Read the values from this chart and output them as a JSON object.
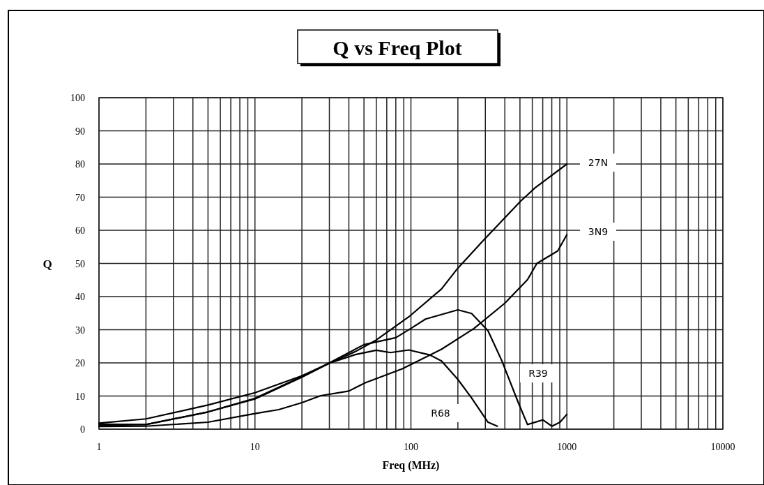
{
  "chart_data": {
    "type": "line",
    "title": "Q vs Freq Plot",
    "xlabel": "Freq (MHz)",
    "ylabel": "Q",
    "log": "x",
    "grid": true,
    "marker": "none",
    "line_style": "solid",
    "xlim": [
      1,
      10000
    ],
    "ylim": [
      0,
      100
    ],
    "xticks": [
      1,
      {
        "value": 2,
        "label": null
      },
      {
        "value": 3,
        "label": null
      },
      {
        "value": 4,
        "label": null
      },
      {
        "value": 5,
        "label": null
      },
      {
        "value": 6,
        "label": null
      },
      {
        "value": 7,
        "label": null
      },
      {
        "value": 8,
        "label": null
      },
      {
        "value": 9,
        "label": null
      },
      10,
      {
        "value": 20,
        "label": null
      },
      {
        "value": 30,
        "label": null
      },
      {
        "value": 40,
        "label": null
      },
      {
        "value": 50,
        "label": null
      },
      {
        "value": 60,
        "label": null
      },
      {
        "value": 70,
        "label": null
      },
      {
        "value": 80,
        "label": null
      },
      {
        "value": 90,
        "label": null
      },
      100,
      {
        "value": 200,
        "label": null
      },
      {
        "value": 300,
        "label": null
      },
      {
        "value": 400,
        "label": null
      },
      {
        "value": 500,
        "label": null
      },
      {
        "value": 600,
        "label": null
      },
      {
        "value": 700,
        "label": null
      },
      {
        "value": 800,
        "label": null
      },
      {
        "value": 900,
        "label": null
      },
      1000,
      {
        "value": 2000,
        "label": null
      },
      {
        "value": 3000,
        "label": null
      },
      {
        "value": 4000,
        "label": null
      },
      {
        "value": 5000,
        "label": null
      },
      {
        "value": 6000,
        "label": null
      },
      {
        "value": 7000,
        "label": null
      },
      {
        "value": 8000,
        "label": null
      },
      {
        "value": 9000,
        "label": null
      },
      10000
    ],
    "yticks": [
      0,
      10,
      20,
      30,
      40,
      50,
      60,
      70,
      80,
      90,
      100
    ],
    "series": [
      {
        "name": "27N",
        "color": "#000000",
        "x": [
          1,
          2,
          5,
          10,
          20,
          30,
          44,
          60,
          97,
          157,
          200,
          292,
          505,
          621,
          1000
        ],
        "values": [
          1.5,
          1.4,
          5.2,
          9.1,
          15.7,
          19.9,
          23.4,
          26.9,
          33.9,
          42.3,
          48.6,
          57,
          68.8,
          72.7,
          80
        ]
      },
      {
        "name": "3N9",
        "color": "#000000",
        "x": [
          1,
          2,
          5,
          10,
          14.2,
          20,
          26.4,
          40,
          51,
          88,
          157,
          254,
          400,
          559,
          642,
          874,
          1000
        ],
        "values": [
          0.8,
          0.9,
          2.1,
          4.7,
          5.9,
          8,
          10.1,
          11.5,
          14,
          18.2,
          24.1,
          30.4,
          38,
          45.1,
          50,
          53.8,
          58.7
        ]
      },
      {
        "name": "R39",
        "color": "#000000",
        "x": [
          1,
          2,
          5,
          10,
          20,
          30,
          50,
          80,
          100,
          124,
          200,
          245,
          312,
          383,
          488,
          559,
          700,
          802,
          904,
          1000
        ],
        "values": [
          1.2,
          1.4,
          5.2,
          9.3,
          15.9,
          20,
          25.5,
          27.6,
          30.4,
          33.2,
          36,
          34.9,
          29.7,
          20.6,
          8,
          1.4,
          2.8,
          0.9,
          2.1,
          4.5
        ]
      },
      {
        "name": "R68",
        "color": "#000000",
        "x": [
          1,
          2,
          5,
          10,
          20,
          30,
          44,
          60,
          74,
          97,
          132,
          157,
          200,
          245,
          312,
          358
        ],
        "values": [
          1.8,
          3.1,
          7.3,
          11,
          16.1,
          19.9,
          22.5,
          23.8,
          23.1,
          23.9,
          22.4,
          20.6,
          15,
          9.4,
          2.1,
          0.9
        ]
      }
    ]
  }
}
